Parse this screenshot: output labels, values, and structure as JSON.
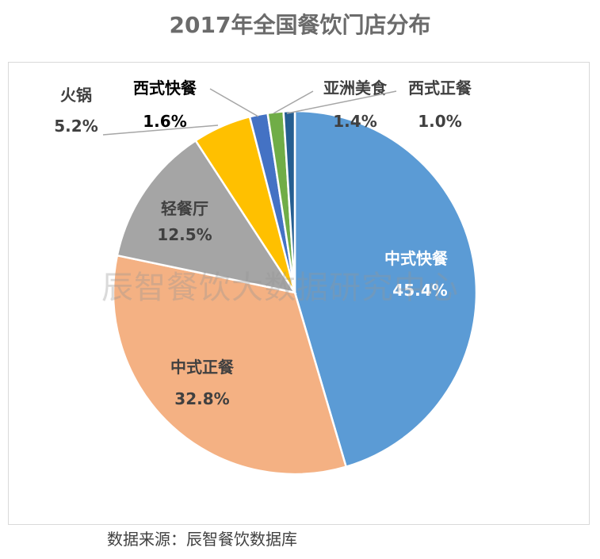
{
  "chart_data": {
    "type": "pie",
    "title": "2017年全国餐饮门店分布",
    "start": "12 o'clock, clockwise",
    "slices": [
      {
        "label": "中式快餐",
        "value": 45.4,
        "display": "45.4%",
        "color": "#5B9BD5"
      },
      {
        "label": "中式正餐",
        "value": 32.8,
        "display": "32.8%",
        "color": "#F4B183"
      },
      {
        "label": "轻餐厅",
        "value": 12.5,
        "display": "12.5%",
        "color": "#A5A5A5"
      },
      {
        "label": "火锅",
        "value": 5.2,
        "display": "5.2%",
        "color": "#FFC000"
      },
      {
        "label": "西式快餐",
        "value": 1.6,
        "display": "1.6%",
        "color": "#4472C4"
      },
      {
        "label": "亚洲美食",
        "value": 1.4,
        "display": "1.4%",
        "color": "#70AD47"
      },
      {
        "label": "西式正餐",
        "value": 1.0,
        "display": "1.0%",
        "color": "#255E91"
      }
    ]
  },
  "watermark": "辰智餐饮大数据研究中心",
  "source": "数据来源：辰智餐饮数据库"
}
